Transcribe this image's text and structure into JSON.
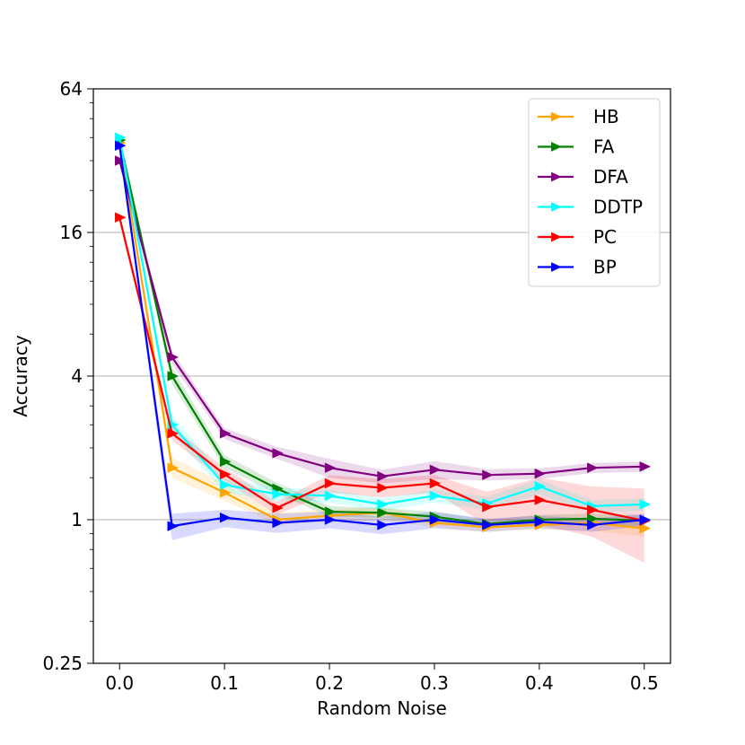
{
  "chart_data": {
    "type": "line",
    "title": "",
    "xlabel": "Random Noise",
    "ylabel": "Accuracy",
    "xlim": [
      -0.025,
      0.525
    ],
    "ylim": [
      0.25,
      64
    ],
    "yscale": "log2",
    "grid": "y-major",
    "x_ticks": [
      0.0,
      0.1,
      0.2,
      0.3,
      0.4,
      0.5
    ],
    "x_tick_labels": [
      "0.0",
      "0.1",
      "0.2",
      "0.3",
      "0.4",
      "0.5"
    ],
    "y_ticks": [
      0.25,
      1,
      4,
      16,
      64
    ],
    "y_tick_labels": [
      "0.25",
      "1",
      "4",
      "16",
      "64"
    ],
    "legend_position": "top-right",
    "x": [
      0.0,
      0.05,
      0.1,
      0.15,
      0.2,
      0.25,
      0.3,
      0.35,
      0.4,
      0.45,
      0.5
    ],
    "series": [
      {
        "name": "HB",
        "color": "#ffa500",
        "values": [
          38,
          1.65,
          1.3,
          1.0,
          1.04,
          1.07,
          0.97,
          0.93,
          0.95,
          0.97,
          0.92
        ],
        "band": [
          [
            36,
            40
          ],
          [
            1.5,
            1.82
          ],
          [
            1.2,
            1.42
          ],
          [
            0.95,
            1.07
          ],
          [
            0.98,
            1.1
          ],
          [
            1.0,
            1.13
          ],
          [
            0.93,
            1.02
          ],
          [
            0.89,
            0.97
          ],
          [
            0.91,
            0.99
          ],
          [
            0.9,
            1.03
          ],
          [
            0.85,
            0.98
          ]
        ]
      },
      {
        "name": "FA",
        "color": "#008000",
        "values": [
          39,
          4.0,
          1.75,
          1.35,
          1.08,
          1.07,
          1.03,
          0.96,
          1.0,
          1.01,
          0.99
        ],
        "band": [
          [
            37,
            41
          ],
          [
            3.7,
            4.35
          ],
          [
            1.65,
            1.86
          ],
          [
            1.28,
            1.43
          ],
          [
            1.03,
            1.14
          ],
          [
            1.02,
            1.12
          ],
          [
            0.98,
            1.08
          ],
          [
            0.92,
            1.0
          ],
          [
            0.95,
            1.05
          ],
          [
            0.96,
            1.06
          ],
          [
            0.94,
            1.04
          ]
        ]
      },
      {
        "name": "DFA",
        "color": "#800080",
        "values": [
          32,
          4.8,
          2.3,
          1.9,
          1.65,
          1.52,
          1.62,
          1.54,
          1.56,
          1.65,
          1.67
        ],
        "band": [
          [
            30.5,
            33.5
          ],
          [
            4.5,
            5.1
          ],
          [
            2.18,
            2.42
          ],
          [
            1.8,
            2.02
          ],
          [
            1.5,
            1.8
          ],
          [
            1.42,
            1.62
          ],
          [
            1.48,
            1.76
          ],
          [
            1.46,
            1.63
          ],
          [
            1.48,
            1.64
          ],
          [
            1.57,
            1.73
          ],
          [
            1.59,
            1.75
          ]
        ]
      },
      {
        "name": "DDTP",
        "color": "#00ffff",
        "values": [
          40,
          2.5,
          1.4,
          1.28,
          1.26,
          1.16,
          1.26,
          1.17,
          1.38,
          1.14,
          1.16
        ],
        "band": [
          [
            38,
            42
          ],
          [
            2.3,
            2.75
          ],
          [
            1.3,
            1.5
          ],
          [
            1.2,
            1.36
          ],
          [
            1.18,
            1.34
          ],
          [
            1.09,
            1.23
          ],
          [
            1.18,
            1.34
          ],
          [
            1.1,
            1.25
          ],
          [
            1.28,
            1.48
          ],
          [
            1.07,
            1.21
          ],
          [
            1.09,
            1.23
          ]
        ]
      },
      {
        "name": "PC",
        "color": "#ff0000",
        "values": [
          18.5,
          2.3,
          1.55,
          1.12,
          1.42,
          1.36,
          1.42,
          1.13,
          1.21,
          1.1,
          0.99
        ],
        "band": [
          [
            17.5,
            19.5
          ],
          [
            2.15,
            2.45
          ],
          [
            1.45,
            1.65
          ],
          [
            1.05,
            1.19
          ],
          [
            1.3,
            1.54
          ],
          [
            1.24,
            1.48
          ],
          [
            1.3,
            1.54
          ],
          [
            0.95,
            1.31
          ],
          [
            0.95,
            1.5
          ],
          [
            0.85,
            1.38
          ],
          [
            0.66,
            1.35
          ]
        ]
      },
      {
        "name": "BP",
        "color": "#0000ff",
        "values": [
          37,
          0.94,
          1.02,
          0.97,
          1.0,
          0.95,
          1.0,
          0.95,
          0.98,
          0.95,
          1.0
        ],
        "band": [
          [
            35,
            39
          ],
          [
            0.82,
            1.06
          ],
          [
            0.93,
            1.1
          ],
          [
            0.88,
            1.06
          ],
          [
            0.92,
            1.08
          ],
          [
            0.87,
            1.03
          ],
          [
            0.92,
            1.08
          ],
          [
            0.89,
            1.01
          ],
          [
            0.92,
            1.04
          ],
          [
            0.89,
            1.01
          ],
          [
            0.94,
            1.06
          ]
        ]
      }
    ]
  }
}
